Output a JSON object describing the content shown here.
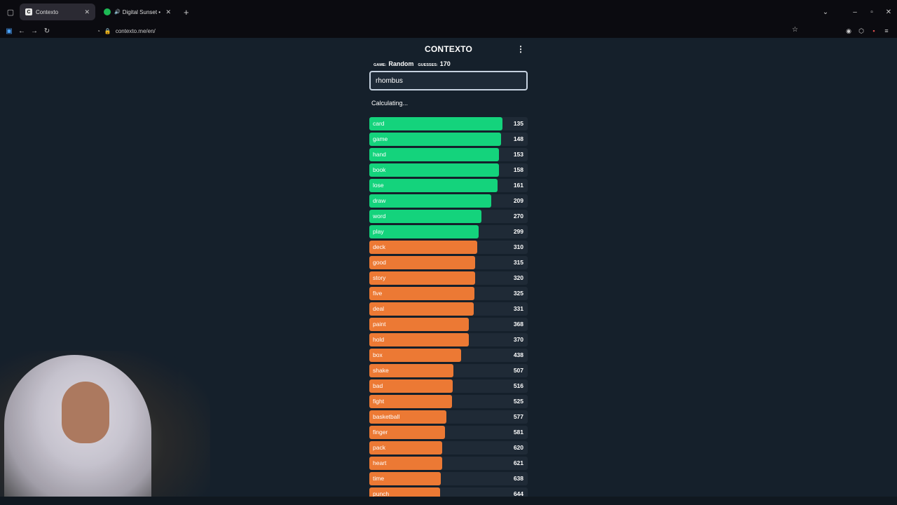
{
  "browser": {
    "tabs": [
      {
        "title": "Contexto",
        "active": true,
        "fav": "C",
        "fav_color": "#e8e8e8"
      },
      {
        "title": "Digital Sunset • Royalty Fre",
        "active": false,
        "fav": "",
        "fav_color": "#1db954"
      }
    ],
    "url": "contexto.me/en/"
  },
  "app": {
    "title": "CONTEXTO",
    "game_label": "GAME:",
    "game_value": "Random",
    "guesses_label": "GUESSES:",
    "guesses_value": "170",
    "input_value": "rhombus",
    "status": "Calculating..."
  },
  "guesses": [
    {
      "word": "card",
      "distance": 135,
      "color": "green",
      "fill": 0.84
    },
    {
      "word": "game",
      "distance": 148,
      "color": "green",
      "fill": 0.83
    },
    {
      "word": "hand",
      "distance": 153,
      "color": "green",
      "fill": 0.82
    },
    {
      "word": "book",
      "distance": 158,
      "color": "green",
      "fill": 0.82
    },
    {
      "word": "lose",
      "distance": 161,
      "color": "green",
      "fill": 0.81
    },
    {
      "word": "draw",
      "distance": 209,
      "color": "green",
      "fill": 0.77
    },
    {
      "word": "word",
      "distance": 270,
      "color": "green",
      "fill": 0.71
    },
    {
      "word": "play",
      "distance": 299,
      "color": "green",
      "fill": 0.69
    },
    {
      "word": "deck",
      "distance": 310,
      "color": "orange",
      "fill": 0.68
    },
    {
      "word": "good",
      "distance": 315,
      "color": "orange",
      "fill": 0.67
    },
    {
      "word": "story",
      "distance": 320,
      "color": "orange",
      "fill": 0.67
    },
    {
      "word": "five",
      "distance": 325,
      "color": "orange",
      "fill": 0.665
    },
    {
      "word": "deal",
      "distance": 331,
      "color": "orange",
      "fill": 0.66
    },
    {
      "word": "paint",
      "distance": 368,
      "color": "orange",
      "fill": 0.63
    },
    {
      "word": "hold",
      "distance": 370,
      "color": "orange",
      "fill": 0.63
    },
    {
      "word": "box",
      "distance": 438,
      "color": "orange",
      "fill": 0.58
    },
    {
      "word": "shake",
      "distance": 507,
      "color": "orange",
      "fill": 0.53
    },
    {
      "word": "bad",
      "distance": 516,
      "color": "orange",
      "fill": 0.525
    },
    {
      "word": "fight",
      "distance": 525,
      "color": "orange",
      "fill": 0.52
    },
    {
      "word": "basketball",
      "distance": 577,
      "color": "orange",
      "fill": 0.485
    },
    {
      "word": "finger",
      "distance": 581,
      "color": "orange",
      "fill": 0.48
    },
    {
      "word": "pack",
      "distance": 620,
      "color": "orange",
      "fill": 0.46
    },
    {
      "word": "heart",
      "distance": 621,
      "color": "orange",
      "fill": 0.46
    },
    {
      "word": "time",
      "distance": 638,
      "color": "orange",
      "fill": 0.45
    },
    {
      "word": "punch",
      "distance": 644,
      "color": "orange",
      "fill": 0.445
    }
  ]
}
